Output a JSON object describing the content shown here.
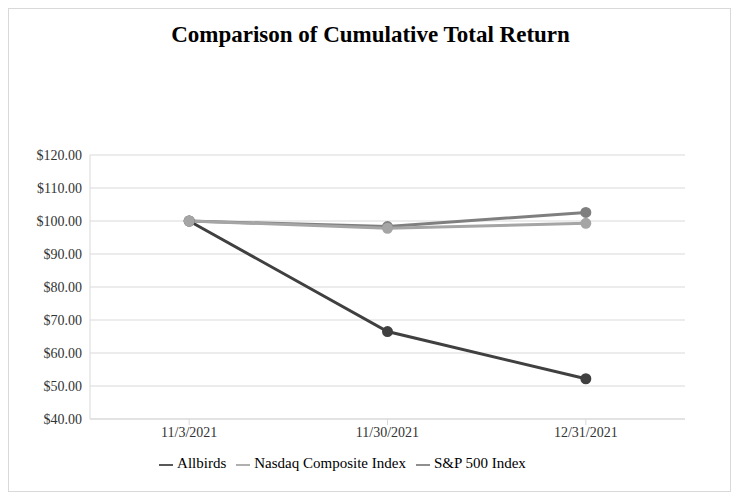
{
  "chart_data": {
    "type": "line",
    "title": "Comparison of Cumulative Total Return",
    "categories": [
      "11/3/2021",
      "11/30/2021",
      "12/31/2021"
    ],
    "series": [
      {
        "name": "Allbirds",
        "color": "#404040",
        "marker": "circle",
        "values": [
          100,
          66.5,
          52.2
        ]
      },
      {
        "name": "S&P 500 Index",
        "color": "#7f7f7f",
        "marker": "circle",
        "values": [
          100,
          98.3,
          102.6
        ]
      },
      {
        "name": "Nasdaq Composite Index",
        "color": "#a5a5a5",
        "marker": "circle",
        "values": [
          100,
          97.8,
          99.3
        ]
      }
    ],
    "ylim": [
      40,
      120
    ],
    "yticks": [
      {
        "value": 40,
        "label": "$40.00"
      },
      {
        "value": 50,
        "label": "$50.00"
      },
      {
        "value": 60,
        "label": "$60.00"
      },
      {
        "value": 70,
        "label": "$70.00"
      },
      {
        "value": 80,
        "label": "$80.00"
      },
      {
        "value": 90,
        "label": "$90.00"
      },
      {
        "value": 100,
        "label": "$100.00"
      },
      {
        "value": 110,
        "label": "$110.00"
      },
      {
        "value": 120,
        "label": "$120.00"
      }
    ],
    "grid": true,
    "legend": "bottom"
  }
}
